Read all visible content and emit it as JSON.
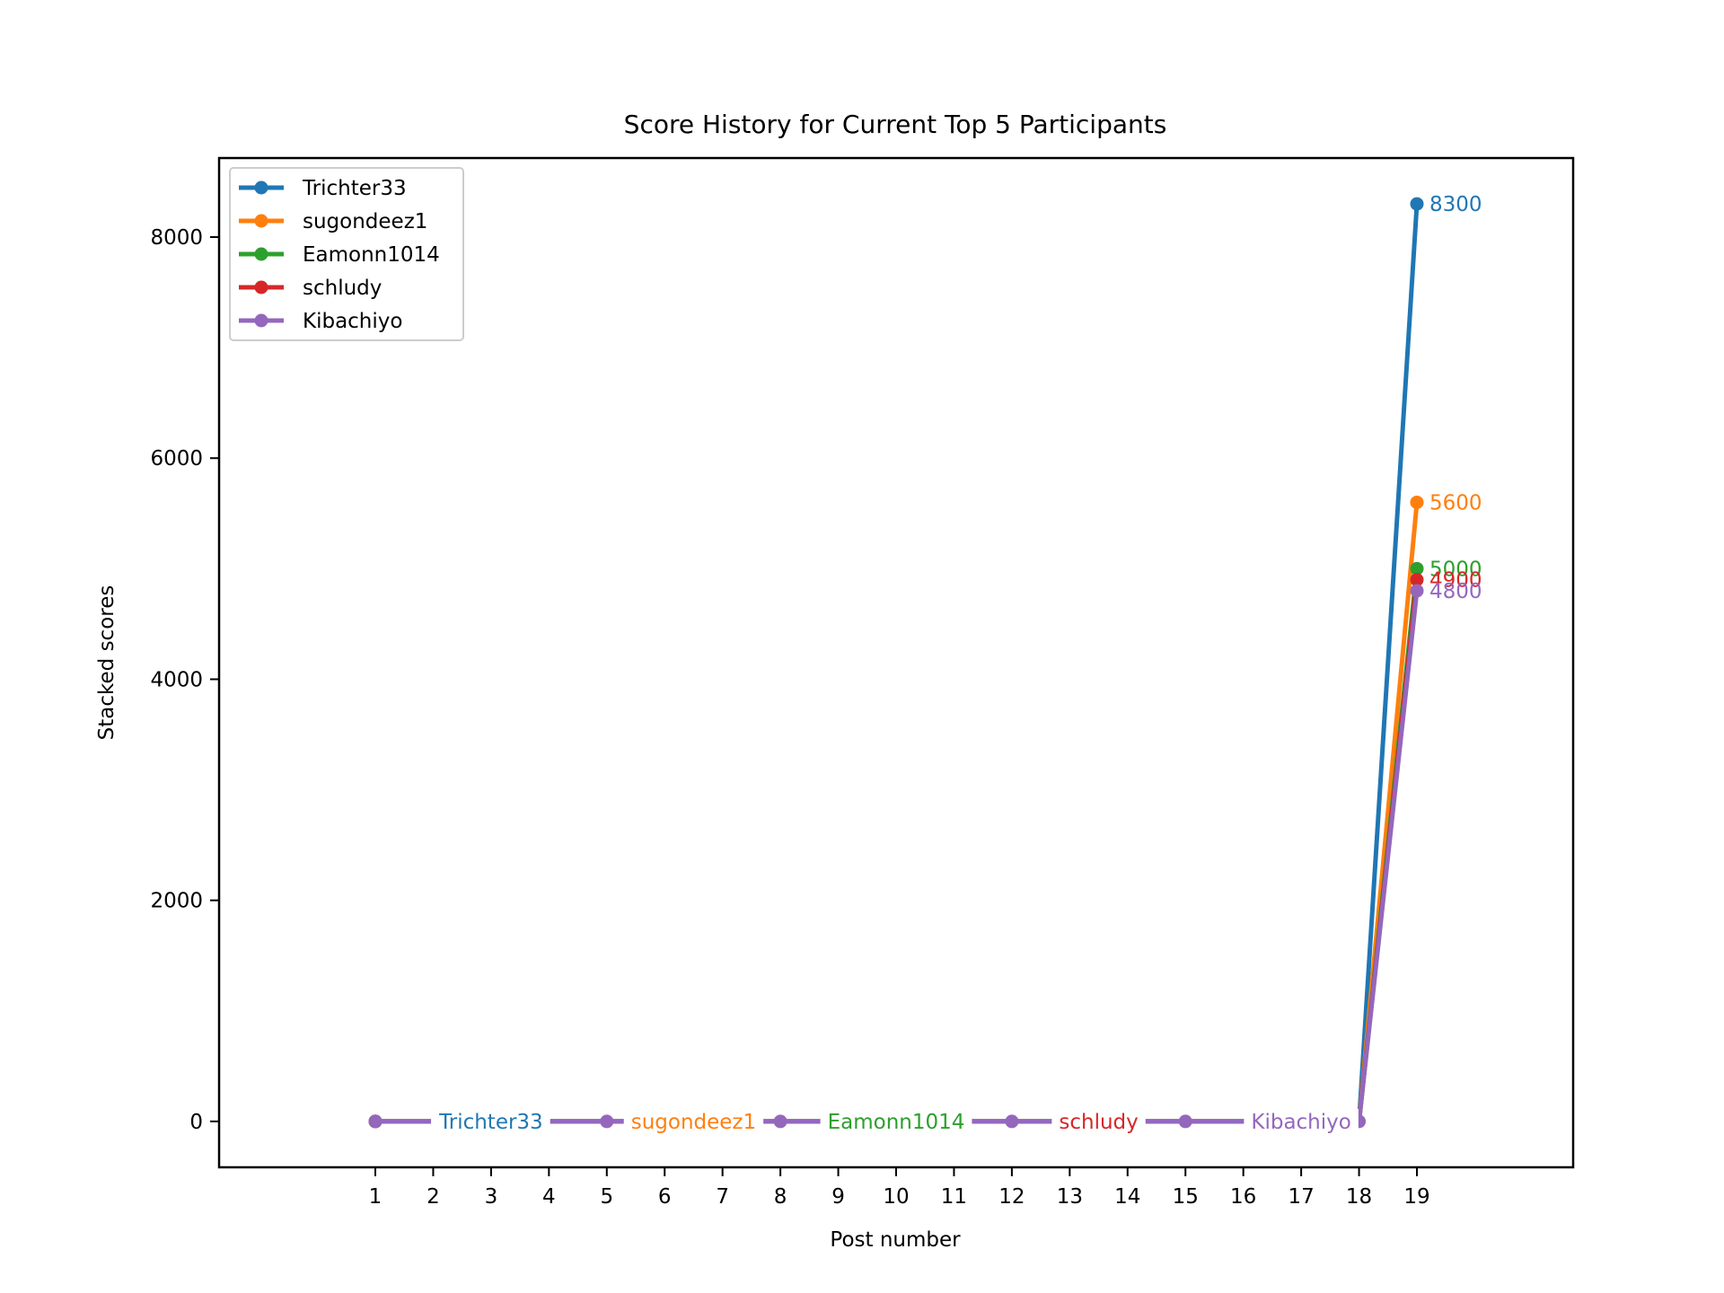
{
  "chart_data": {
    "type": "line",
    "title": "Score History for Current Top 5 Participants",
    "xlabel": "Post number",
    "ylabel": "Stacked scores",
    "x_ticks": [
      1,
      2,
      3,
      4,
      5,
      6,
      7,
      8,
      9,
      10,
      11,
      12,
      13,
      14,
      15,
      16,
      17,
      18,
      19
    ],
    "y_ticks": [
      0,
      2000,
      4000,
      6000,
      8000
    ],
    "xlim": [
      -1.7,
      21.7
    ],
    "ylim": [
      -415,
      8715
    ],
    "legend_position": "top-left",
    "grid": false,
    "series": [
      {
        "name": "Trichter33",
        "color": "#1f77b4",
        "points": [
          [
            1,
            0
          ],
          [
            18,
            0
          ],
          [
            19,
            8300
          ]
        ],
        "end_label": "8300"
      },
      {
        "name": "sugondeez1",
        "color": "#ff7f0e",
        "points": [
          [
            1,
            0
          ],
          [
            18,
            0
          ],
          [
            19,
            5600
          ]
        ],
        "end_label": "5600"
      },
      {
        "name": "Eamonn1014",
        "color": "#2ca02c",
        "points": [
          [
            1,
            0
          ],
          [
            18,
            0
          ],
          [
            19,
            5000
          ]
        ],
        "end_label": "5000"
      },
      {
        "name": "schludy",
        "color": "#d62728",
        "points": [
          [
            1,
            0
          ],
          [
            18,
            0
          ],
          [
            19,
            4900
          ]
        ],
        "end_label": "4900"
      },
      {
        "name": "Kibachiyo",
        "color": "#9467bd",
        "points": [
          [
            1,
            0
          ],
          [
            5,
            0
          ],
          [
            8,
            0
          ],
          [
            12,
            0
          ],
          [
            15,
            0
          ],
          [
            18,
            0
          ],
          [
            19,
            4800
          ]
        ],
        "end_label": "4800"
      }
    ],
    "annotations": [
      {
        "text": "Trichter33",
        "x": 3,
        "y": 0,
        "color": "#1f77b4"
      },
      {
        "text": "sugondeez1",
        "x": 6.5,
        "y": 0,
        "color": "#ff7f0e"
      },
      {
        "text": "Eamonn1014",
        "x": 10,
        "y": 0,
        "color": "#2ca02c"
      },
      {
        "text": "schludy",
        "x": 13.5,
        "y": 0,
        "color": "#d62728"
      },
      {
        "text": "Kibachiyo",
        "x": 17,
        "y": 0,
        "color": "#9467bd"
      }
    ]
  }
}
